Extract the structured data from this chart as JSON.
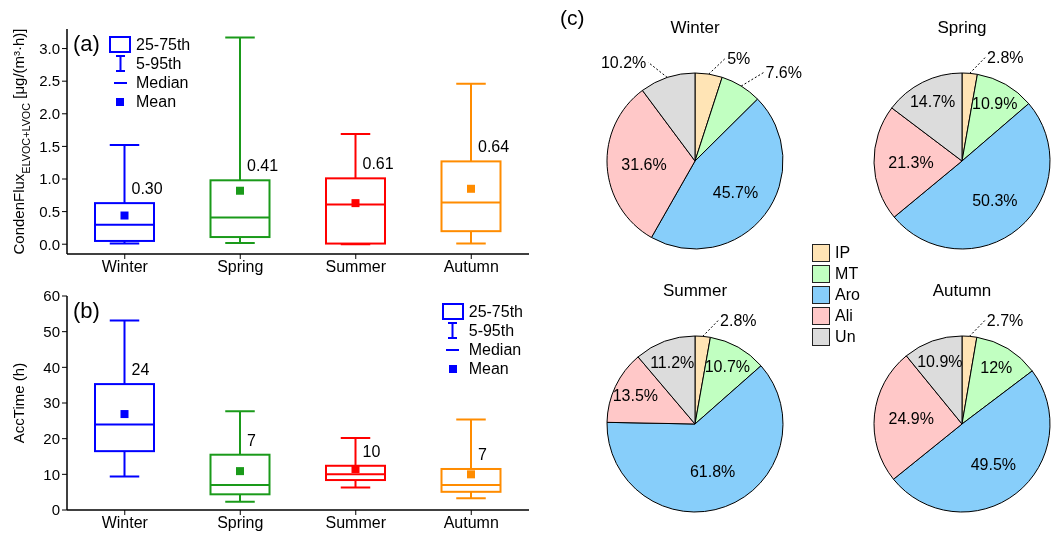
{
  "chart_data": [
    {
      "type": "box",
      "categories": [
        "Winter",
        "Spring",
        "Summer",
        "Autumn"
      ],
      "ylabel": "CondenFlux$_{ELVOC+LVOC}$ [μg/(m³·h)]",
      "ylim": [
        -0.15,
        3.3
      ],
      "yticks": [
        {
          "value": 0,
          "label": "0.0"
        },
        0.5,
        {
          "value": 1,
          "label": "1.0"
        },
        1.5,
        {
          "value": 2,
          "label": "2.0"
        },
        2.5,
        {
          "value": 3,
          "label": "3.0"
        }
      ],
      "colors": [
        "#0000ff",
        "#1a9a1a",
        "#ff0000",
        "#ff8c00"
      ],
      "boxes": [
        {
          "low": 0.01,
          "q1": 0.05,
          "median": 0.3,
          "q3": 0.63,
          "high": 1.52,
          "mean": 0.44
        },
        {
          "low": 0.02,
          "q1": 0.11,
          "median": 0.41,
          "q3": 0.98,
          "high": 3.17,
          "mean": 0.82
        },
        {
          "low": 0,
          "q1": 0.01,
          "median": 0.61,
          "q3": 1.01,
          "high": 1.69,
          "mean": 0.63
        },
        {
          "low": 0.01,
          "q1": 0.2,
          "median": 0.64,
          "q3": 1.27,
          "high": 2.46,
          "mean": 0.85
        }
      ],
      "value_labels": [
        "0.30",
        "0.41",
        "0.61",
        "0.64"
      ],
      "annotations": [
        "(a)",
        "25-75th",
        "5-95th",
        "Median",
        "Mean"
      ]
    },
    {
      "type": "box",
      "categories": [
        "Winter",
        "Spring",
        "Summer",
        "Autumn"
      ],
      "ylabel": "AccTime (h)",
      "ylim": [
        0,
        60
      ],
      "yticks": [
        0,
        10,
        20,
        30,
        40,
        50,
        60
      ],
      "colors": [
        "#0000ff",
        "#1a9a1a",
        "#ff0000",
        "#ff8c00"
      ],
      "boxes": [
        {
          "low": 9.4,
          "q1": 16.5,
          "median": 24,
          "q3": 35.3,
          "high": 53.1,
          "mean": 26.9
        },
        {
          "low": 2.3,
          "q1": 4.4,
          "median": 7,
          "q3": 15.5,
          "high": 27.7,
          "mean": 10.9
        },
        {
          "low": 6.3,
          "q1": 8.4,
          "median": 10,
          "q3": 12.4,
          "high": 20.2,
          "mean": 11.5
        },
        {
          "low": 3.3,
          "q1": 5.1,
          "median": 7,
          "q3": 11.5,
          "high": 25.4,
          "mean": 10
        }
      ],
      "value_labels": [
        "24",
        "7",
        "10",
        "7"
      ],
      "annotations": [
        "(b)",
        "25-75th",
        "5-95th",
        "Median",
        "Mean"
      ]
    },
    {
      "type": "pie",
      "title": "Winter",
      "categories": [
        null,
        null,
        null,
        null,
        null
      ],
      "values": [
        5,
        7.6,
        45.7,
        31.6,
        10.2
      ],
      "colors": [
        "#ffe4b5",
        "#c1ffc1",
        "#87cefa",
        "#ffc8c8",
        "#dcdcdc"
      ],
      "value_labels": [
        "5%",
        "7.6%",
        "45.7%",
        "31.6%",
        "10.2%"
      ],
      "annotations": [
        "(c)"
      ]
    },
    {
      "type": "pie",
      "title": "Spring",
      "categories": [
        null,
        null,
        null,
        null,
        null
      ],
      "values": [
        2.8,
        10.9,
        50.3,
        21.3,
        14.7
      ],
      "colors": [
        "#ffe4b5",
        "#c1ffc1",
        "#87cefa",
        "#ffc8c8",
        "#dcdcdc"
      ],
      "value_labels": [
        "2.8%",
        "10.9%",
        "50.3%",
        "21.3%",
        "14.7%"
      ]
    },
    {
      "type": "pie",
      "title": "Summer",
      "categories": [
        "IP",
        "MT",
        "Aro",
        "Ali",
        "Un"
      ],
      "values": [
        2.8,
        10.7,
        61.8,
        13.5,
        11.2
      ],
      "colors": [
        "#ffe4b5",
        "#c1ffc1",
        "#87cefa",
        "#ffc8c8",
        "#dcdcdc"
      ],
      "value_labels": [
        "2.8%",
        "10.7%",
        "61.8%",
        "13.5%",
        "11.2%"
      ],
      "legend": "top right"
    },
    {
      "type": "pie",
      "title": "Autumn",
      "categories": [
        null,
        null,
        null,
        null,
        null
      ],
      "values": [
        2.7,
        12,
        49.5,
        24.9,
        10.9
      ],
      "colors": [
        "#ffe4b5",
        "#c1ffc1",
        "#87cefa",
        "#ffc8c8",
        "#dcdcdc"
      ],
      "value_labels": [
        "2.7%",
        "12%",
        "49.5%",
        "24.9%",
        "10.9%"
      ]
    }
  ]
}
